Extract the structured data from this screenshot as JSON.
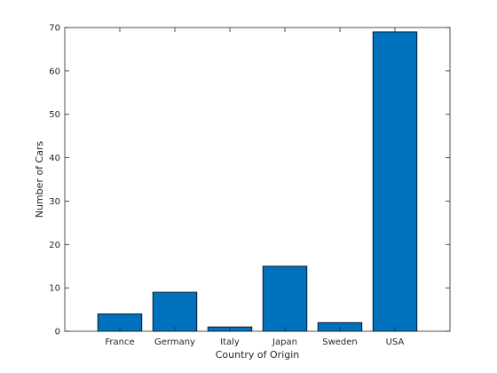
{
  "chart_data": {
    "type": "bar",
    "title": "",
    "xlabel": "Country of Origin",
    "ylabel": "Number of Cars",
    "categories": [
      "France",
      "Germany",
      "Italy",
      "Japan",
      "Sweden",
      "USA"
    ],
    "values": [
      4,
      9,
      1,
      15,
      2,
      69
    ],
    "ylim": [
      0,
      70
    ],
    "yticks": [
      0,
      10,
      20,
      30,
      40,
      50,
      60,
      70
    ],
    "grid": false,
    "legend": "none",
    "colors": {
      "bar_fill": "#0072BD",
      "bar_edge": "#000000",
      "axis": "#262626",
      "background": "#ffffff"
    }
  }
}
